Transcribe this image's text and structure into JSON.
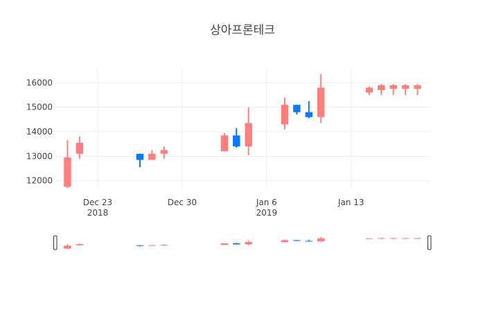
{
  "chart_data": {
    "type": "candlestick",
    "title": "상아프론테크",
    "x_ticks": [
      {
        "label": "Dec 23",
        "sublabel": "2018",
        "date": "2018-12-23"
      },
      {
        "label": "Dec 30",
        "sublabel": "",
        "date": "2018-12-30"
      },
      {
        "label": "Jan 6",
        "sublabel": "2019",
        "date": "2019-01-06"
      },
      {
        "label": "Jan 13",
        "sublabel": "",
        "date": "2019-01-13"
      }
    ],
    "y_ticks": [
      12000,
      13000,
      14000,
      15000,
      16000
    ],
    "ylim": [
      11650,
      16550
    ],
    "xlim": [
      "2018-12-19T12:00",
      "2019-01-19T12:00"
    ],
    "grid": true,
    "colors": {
      "increasing": "#ff7f7f",
      "decreasing": "#0a78ff"
    },
    "candles": [
      {
        "date": "2018-12-20",
        "open": 11750,
        "high": 13650,
        "low": 11700,
        "close": 12950
      },
      {
        "date": "2018-12-21",
        "open": 13100,
        "high": 13800,
        "low": 12900,
        "close": 13550
      },
      {
        "date": "2018-12-26",
        "open": 13100,
        "high": 13100,
        "low": 12550,
        "close": 12850
      },
      {
        "date": "2018-12-27",
        "open": 12850,
        "high": 13250,
        "low": 12850,
        "close": 13100
      },
      {
        "date": "2018-12-28",
        "open": 13100,
        "high": 13400,
        "low": 12900,
        "close": 13250
      },
      {
        "date": "2019-01-02",
        "open": 13200,
        "high": 13950,
        "low": 13200,
        "close": 13850
      },
      {
        "date": "2019-01-03",
        "open": 13850,
        "high": 14150,
        "low": 13350,
        "close": 13400
      },
      {
        "date": "2019-01-04",
        "open": 13400,
        "high": 15000,
        "low": 13050,
        "close": 14350
      },
      {
        "date": "2019-01-07",
        "open": 14300,
        "high": 15400,
        "low": 14100,
        "close": 15100
      },
      {
        "date": "2019-01-08",
        "open": 15100,
        "high": 15100,
        "low": 14700,
        "close": 14800
      },
      {
        "date": "2019-01-09",
        "open": 14800,
        "high": 15250,
        "low": 14550,
        "close": 14600
      },
      {
        "date": "2019-01-10",
        "open": 14600,
        "high": 16350,
        "low": 14350,
        "close": 15800
      },
      {
        "date": "2019-01-14",
        "open": 15600,
        "high": 15850,
        "low": 15500,
        "close": 15800
      },
      {
        "date": "2019-01-15",
        "open": 15700,
        "high": 15950,
        "low": 15500,
        "close": 15900
      },
      {
        "date": "2019-01-16",
        "open": 15750,
        "high": 15950,
        "low": 15500,
        "close": 15900
      },
      {
        "date": "2019-01-17",
        "open": 15750,
        "high": 15950,
        "low": 15500,
        "close": 15900
      },
      {
        "date": "2019-01-18",
        "open": 15750,
        "high": 15950,
        "low": 15500,
        "close": 15900
      }
    ]
  }
}
